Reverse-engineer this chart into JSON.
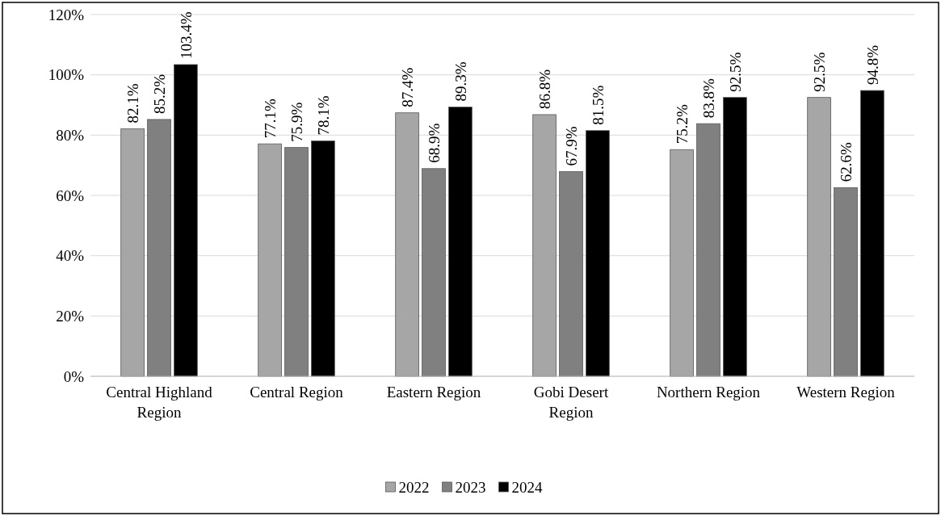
{
  "chart_data": {
    "type": "bar",
    "categories": [
      "Central Highland Region",
      "Central Region",
      "Eastern Region",
      "Gobi Desert Region",
      "Northern Region",
      "Western Region"
    ],
    "series": [
      {
        "name": "2022",
        "color": "#a6a6a6",
        "values": [
          82.1,
          77.1,
          87.4,
          86.8,
          75.2,
          92.5
        ],
        "value_labels": [
          "82.1%",
          "77.1%",
          "87.4%",
          "86.8%",
          "75.2%",
          "92.5%"
        ]
      },
      {
        "name": "2023",
        "color": "#808080",
        "values": [
          85.2,
          75.9,
          68.9,
          67.9,
          83.8,
          62.6
        ],
        "value_labels": [
          "85.2%",
          "75.9%",
          "68.9%",
          "67.9%",
          "83.8%",
          "62.6%"
        ]
      },
      {
        "name": "2024",
        "color": "#000000",
        "values": [
          103.4,
          78.1,
          89.3,
          81.5,
          92.5,
          94.8
        ],
        "value_labels": [
          "103.4%",
          "78.1%",
          "89.3%",
          "81.5%",
          "92.5%",
          "94.8%"
        ]
      }
    ],
    "ylim": [
      0,
      120
    ],
    "yticks": [
      {
        "value": 0,
        "label": "0%"
      },
      {
        "value": 20,
        "label": "20%"
      },
      {
        "value": 40,
        "label": "40%"
      },
      {
        "value": 60,
        "label": "60%"
      },
      {
        "value": 80,
        "label": "80%"
      },
      {
        "value": 100,
        "label": "100%"
      },
      {
        "value": 120,
        "label": "120%"
      }
    ],
    "grid": "y",
    "legend": "bottom"
  }
}
